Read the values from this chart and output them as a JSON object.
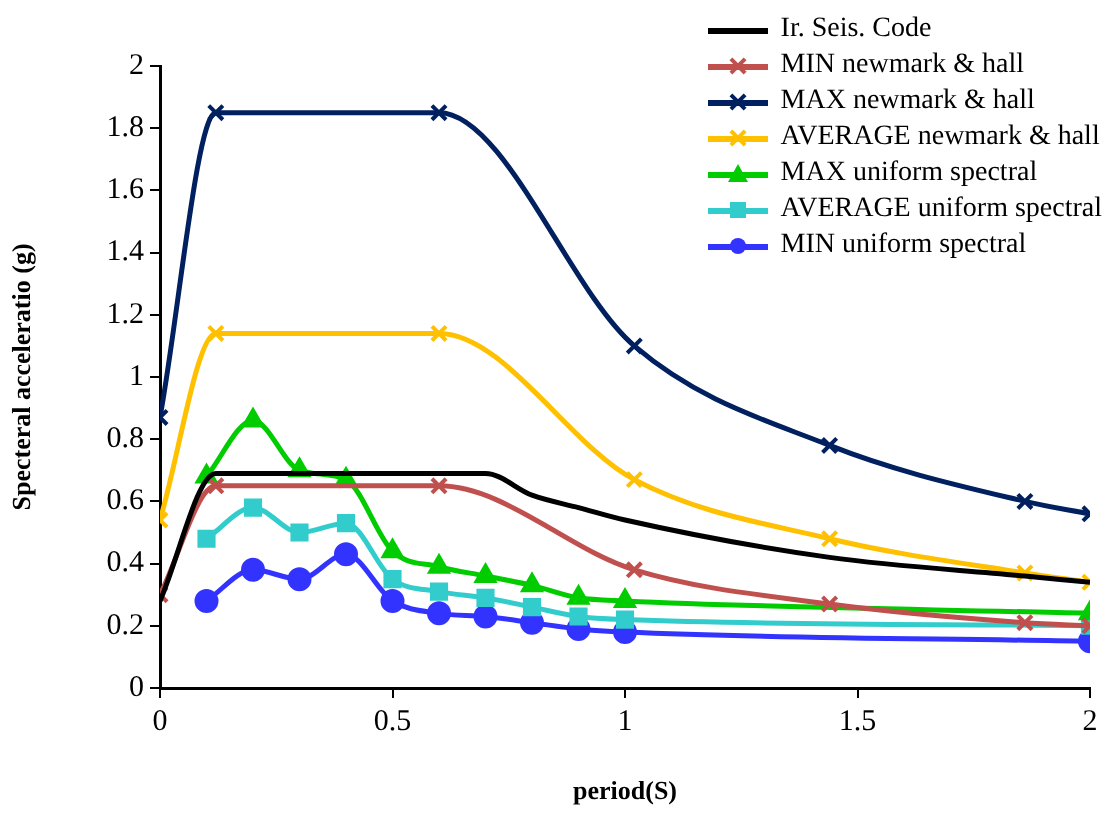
{
  "chart_data": {
    "type": "line",
    "xlabel": "period(S)",
    "ylabel": "Specteral acceleratio (g)",
    "xlim": [
      0,
      2
    ],
    "xticks": [
      0,
      0.5,
      1,
      1.5,
      2
    ],
    "ylim": [
      0,
      2
    ],
    "yticks": [
      0,
      0.2,
      0.4,
      0.6,
      0.8,
      1,
      1.2,
      1.4,
      1.6,
      1.8,
      2
    ],
    "grid": false,
    "legend": "top right",
    "series": [
      {
        "name": "Ir. Seis. Code",
        "color": "#000000",
        "marker": "none",
        "x": [
          0,
          0.12,
          0.7,
          0.8,
          0.9,
          1.0,
          1.44,
          1.86,
          2
        ],
        "values": [
          0.28,
          0.69,
          0.69,
          0.62,
          0.58,
          0.54,
          0.42,
          0.36,
          0.34
        ]
      },
      {
        "name": "MIN newmark & hall",
        "color": "#c0504d",
        "marker": "cross",
        "x": [
          0,
          0.12,
          0.6,
          1.02,
          1.44,
          1.86,
          2
        ],
        "values": [
          0.3,
          0.65,
          0.65,
          0.38,
          0.27,
          0.21,
          0.2
        ]
      },
      {
        "name": "MAX newmark & hall",
        "color": "#002060",
        "marker": "cross",
        "x": [
          0,
          0.12,
          0.6,
          1.02,
          1.44,
          1.86,
          2
        ],
        "values": [
          0.87,
          1.85,
          1.85,
          1.1,
          0.78,
          0.6,
          0.56
        ]
      },
      {
        "name": "AVERAGE newmark & hall",
        "color": "#ffc000",
        "marker": "cross",
        "x": [
          0,
          0.12,
          0.6,
          1.02,
          1.44,
          1.86,
          2
        ],
        "values": [
          0.54,
          1.14,
          1.14,
          0.67,
          0.48,
          0.37,
          0.34
        ]
      },
      {
        "name": "MAX uniform spectral",
        "color": "#00cc00",
        "marker": "triangle",
        "x": [
          0.1,
          0.2,
          0.3,
          0.4,
          0.5,
          0.6,
          0.7,
          0.8,
          0.9,
          1.0,
          2.0
        ],
        "values": [
          0.68,
          0.86,
          0.7,
          0.67,
          0.44,
          0.39,
          0.36,
          0.33,
          0.29,
          0.28,
          0.24
        ]
      },
      {
        "name": "AVERAGE uniform spectral",
        "color": "#33cccc",
        "marker": "square",
        "x": [
          0.1,
          0.2,
          0.3,
          0.4,
          0.5,
          0.6,
          0.7,
          0.8,
          0.9,
          1.0,
          2.0
        ],
        "values": [
          0.48,
          0.58,
          0.5,
          0.53,
          0.35,
          0.31,
          0.29,
          0.26,
          0.23,
          0.22,
          0.2
        ]
      },
      {
        "name": "MIN uniform spectral",
        "color": "#3333ff",
        "marker": "circle",
        "x": [
          0.1,
          0.2,
          0.3,
          0.4,
          0.5,
          0.6,
          0.7,
          0.8,
          0.9,
          1.0,
          2.0
        ],
        "values": [
          0.28,
          0.38,
          0.35,
          0.43,
          0.28,
          0.24,
          0.23,
          0.21,
          0.19,
          0.18,
          0.15
        ]
      }
    ]
  }
}
